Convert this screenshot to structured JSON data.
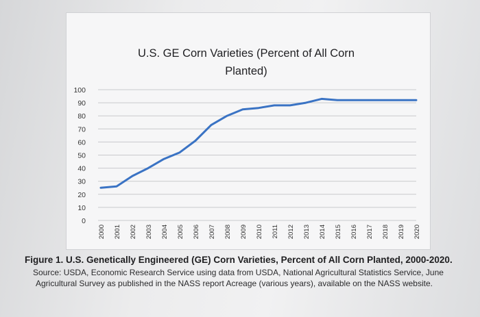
{
  "chart_data": {
    "type": "line",
    "title": "U.S. GE Corn Varieties (Percent of All Corn Planted)",
    "title_lines": [
      "U.S. GE Corn Varieties (Percent of All Corn",
      "Planted)"
    ],
    "categories": [
      "2000",
      "2001",
      "2002",
      "2003",
      "2004",
      "2005",
      "2006",
      "2007",
      "2008",
      "2009",
      "2010",
      "2011",
      "2012",
      "2013",
      "2014",
      "2015",
      "2016",
      "2017",
      "2018",
      "2019",
      "2020"
    ],
    "series": [
      {
        "values": [
          25,
          26,
          34,
          40,
          47,
          52,
          61,
          73,
          80,
          85,
          86,
          88,
          88,
          90,
          93,
          92,
          92,
          92,
          92,
          92,
          92
        ]
      }
    ],
    "yticks": [
      0,
      10,
      20,
      30,
      40,
      50,
      60,
      70,
      80,
      90,
      100
    ],
    "ylim": [
      0,
      100
    ],
    "grid": true,
    "line_color": "#3a73c4"
  },
  "caption": {
    "figure_title": "Figure 1. U.S. Genetically Engineered (GE) Corn Varieties, Percent of All Corn Planted, 2000-2020.",
    "source_line_1": "Source: USDA, Economic Research Service using data from USDA, National Agricultural Statistics Service, June",
    "source_line_2": "Agricultural Survey as published in the NASS report Acreage (various years), available on the NASS website."
  }
}
